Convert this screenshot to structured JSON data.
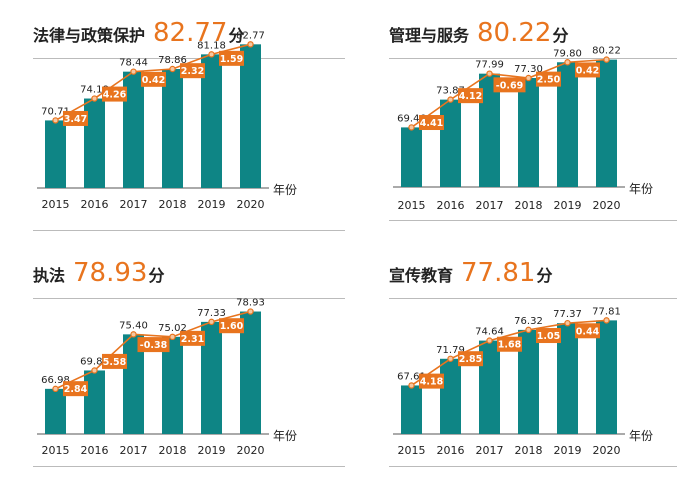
{
  "colors": {
    "bar": "#0E8585",
    "line": "#E8741E",
    "marker_fill": "#F6C7A0",
    "text": "#222222",
    "axis": "#555555",
    "rule": "#bbbbbb"
  },
  "unit": "分",
  "xunit": "年份",
  "chart_data": [
    {
      "type": "bar",
      "title": "法律与政策保护",
      "score": "82.77",
      "categories": [
        "2015",
        "2016",
        "2017",
        "2018",
        "2019",
        "2020"
      ],
      "values": [
        70.71,
        74.18,
        78.44,
        78.86,
        81.18,
        82.77
      ],
      "value_labels": [
        "70.71",
        "74.18",
        "78.44",
        "78.86",
        "81.18",
        "82.77"
      ],
      "changes": [
        "3.47",
        "4.26",
        "0.42",
        "2.32",
        "1.59"
      ],
      "xlabel": "年份",
      "ylim": [
        60,
        85
      ]
    },
    {
      "type": "bar",
      "title": "管理与服务",
      "score": "80.22",
      "categories": [
        "2015",
        "2016",
        "2017",
        "2018",
        "2019",
        "2020"
      ],
      "values": [
        69.46,
        73.87,
        77.99,
        77.3,
        79.8,
        80.22
      ],
      "value_labels": [
        "69.46",
        "73.87",
        "77.99",
        "77.30",
        "79.80",
        "80.22"
      ],
      "changes": [
        "4.41",
        "4.12",
        "-0.69",
        "2.50",
        "0.42"
      ],
      "xlabel": "年份",
      "ylim": [
        60,
        85
      ]
    },
    {
      "type": "bar",
      "title": "执法",
      "score": "78.93",
      "categories": [
        "2015",
        "2016",
        "2017",
        "2018",
        "2019",
        "2020"
      ],
      "values": [
        66.98,
        69.82,
        75.4,
        75.02,
        77.33,
        78.93
      ],
      "value_labels": [
        "66.98",
        "69.82",
        "75.40",
        "75.02",
        "77.33",
        "78.93"
      ],
      "changes": [
        "2.84",
        "5.58",
        "-0.38",
        "2.31",
        "1.60"
      ],
      "xlabel": "年份",
      "ylim": [
        60,
        85
      ]
    },
    {
      "type": "bar",
      "title": "宣传教育",
      "score": "77.81",
      "categories": [
        "2015",
        "2016",
        "2017",
        "2018",
        "2019",
        "2020"
      ],
      "values": [
        67.61,
        71.79,
        74.64,
        76.32,
        77.37,
        77.81
      ],
      "value_labels": [
        "67.61",
        "71.79",
        "74.64",
        "76.32",
        "77.37",
        "77.81"
      ],
      "changes": [
        "4.18",
        "2.85",
        "1.68",
        "1.05",
        "0.44"
      ],
      "xlabel": "年份",
      "ylim": [
        60,
        85
      ]
    }
  ]
}
